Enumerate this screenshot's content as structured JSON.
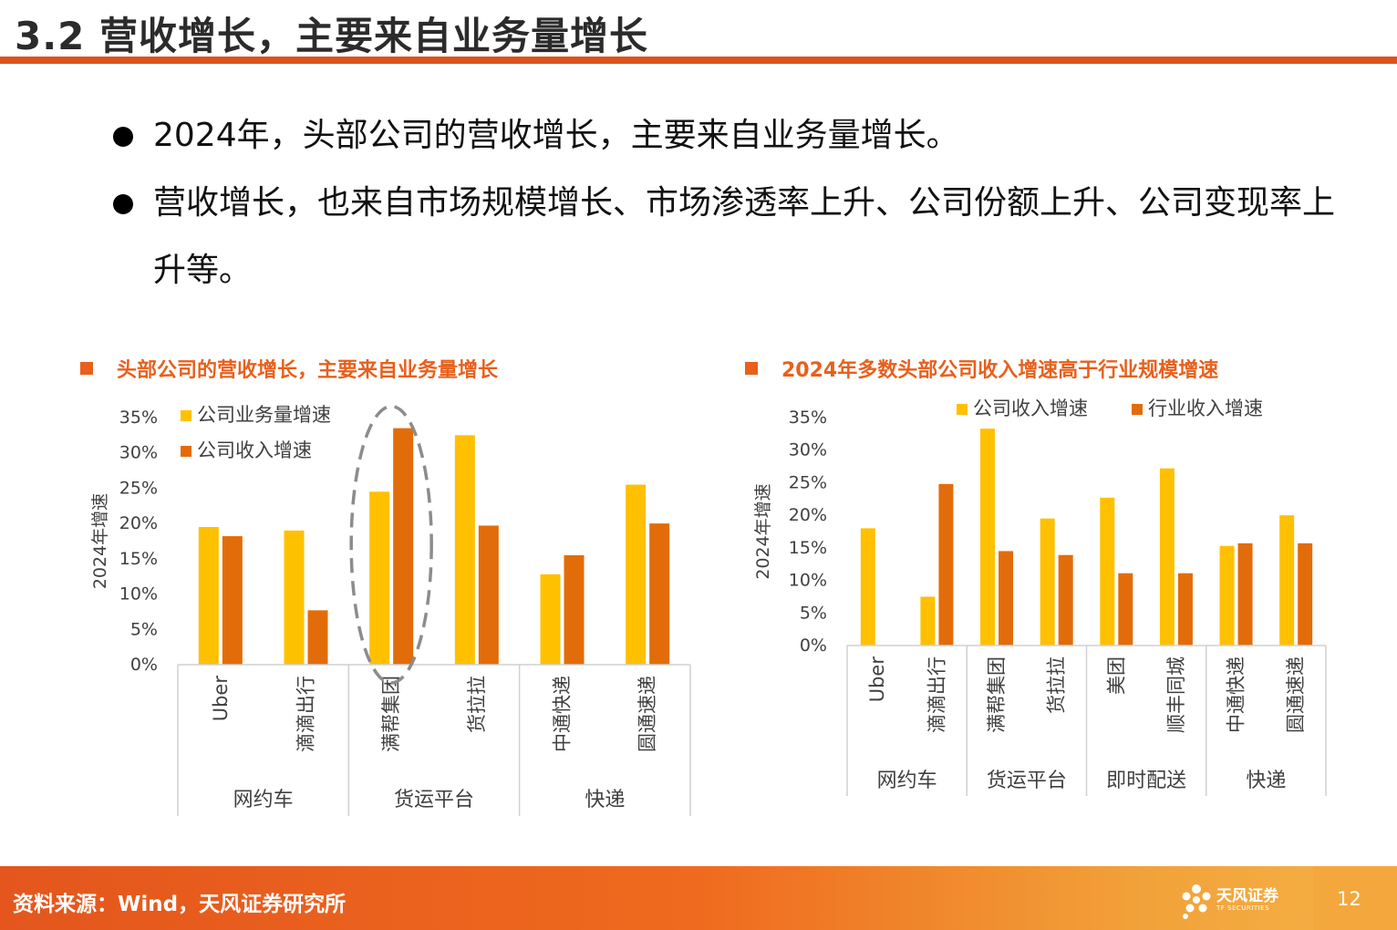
{
  "slide": {
    "title": "3.2 营收增长，主要来自业务量增长",
    "bullets": [
      "2024年，头部公司的营收增长，主要来自业务量增长。",
      "营收增长，也来自市场规模增长、市场渗透率上升、公司份额上升、公司变现率上升等。"
    ],
    "footer_source": "资料来源：Wind，天风证券研究所",
    "logo_name": "天风证券",
    "logo_sub": "TF SECURITIES",
    "page_number": "12"
  },
  "colors": {
    "accent": "#d9531e",
    "series_yellow": "#ffc000",
    "series_orange": "#e36c0a",
    "chart_title": "#e8601c"
  },
  "chart_data": [
    {
      "type": "bar",
      "title": "头部公司的营收增长，主要来自业务量增长",
      "ylabel": "2024年增速",
      "ylim": [
        0,
        35
      ],
      "yticks": [
        "0%",
        "5%",
        "10%",
        "15%",
        "20%",
        "25%",
        "30%",
        "35%"
      ],
      "categories": [
        "Uber",
        "滴滴出行",
        "满帮集团",
        "货拉拉",
        "中通快递",
        "圆通速递"
      ],
      "groups": [
        {
          "label": "网约车",
          "count": 2
        },
        {
          "label": "货运平台",
          "count": 2
        },
        {
          "label": "快递",
          "count": 2
        }
      ],
      "series": [
        {
          "name": "公司业务量增速",
          "color": "#ffc000",
          "values": [
            19.5,
            19.0,
            24.5,
            32.5,
            12.8,
            25.5
          ]
        },
        {
          "name": "公司收入增速",
          "color": "#e36c0a",
          "values": [
            18.2,
            7.7,
            33.5,
            19.7,
            15.5,
            20.0
          ]
        }
      ],
      "legend": "top-left",
      "grid": false,
      "highlight": "满帮集团"
    },
    {
      "type": "bar",
      "title": "2024年多数头部公司收入增速高于行业规模增速",
      "ylabel": "2024年增速",
      "ylim": [
        0,
        35
      ],
      "yticks": [
        "0%",
        "5%",
        "10%",
        "15%",
        "20%",
        "25%",
        "30%",
        "35%"
      ],
      "categories": [
        "Uber",
        "滴滴出行",
        "满帮集团",
        "货拉拉",
        "美团",
        "顺丰同城",
        "中通快递",
        "圆通速递"
      ],
      "groups": [
        {
          "label": "网约车",
          "count": 2
        },
        {
          "label": "货运平台",
          "count": 2
        },
        {
          "label": "即时配送",
          "count": 2
        },
        {
          "label": "快递",
          "count": 2
        }
      ],
      "series": [
        {
          "name": "公司收入增速",
          "color": "#ffc000",
          "values": [
            18.0,
            7.5,
            33.3,
            19.5,
            22.7,
            27.2,
            15.3,
            20.0
          ]
        },
        {
          "name": "行业收入增速",
          "color": "#e36c0a",
          "values": [
            null,
            24.8,
            14.5,
            13.9,
            11.1,
            11.1,
            15.7,
            15.7
          ]
        }
      ],
      "legend": "top-right",
      "grid": false
    }
  ]
}
